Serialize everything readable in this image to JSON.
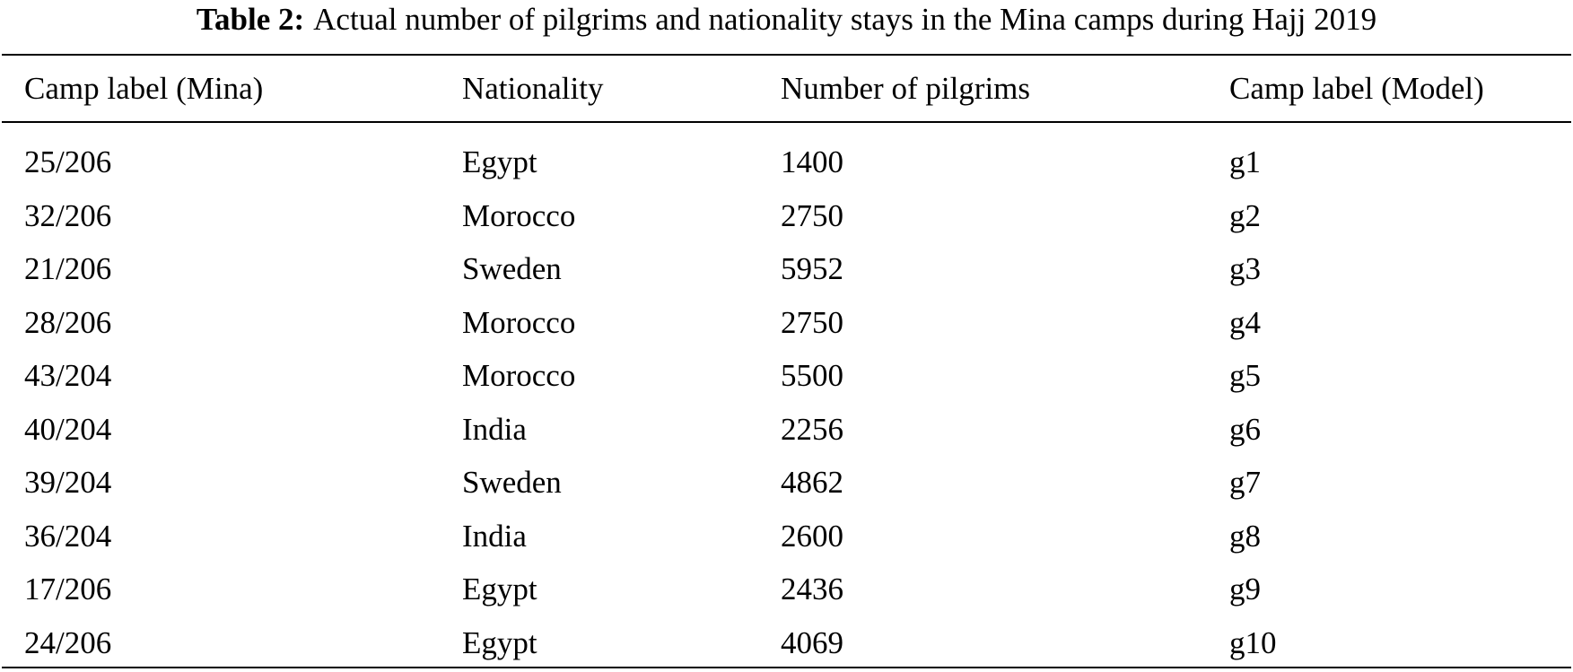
{
  "caption": {
    "label": "Table 2:",
    "text": "Actual number of pilgrims and nationality stays in the Mina camps during Hajj 2019"
  },
  "table": {
    "headers": [
      "Camp label (Mina)",
      "Nationality",
      "Number of pilgrims",
      "Camp label (Model)"
    ],
    "rows": [
      [
        "25/206",
        "Egypt",
        "1400",
        "g1"
      ],
      [
        "32/206",
        "Morocco",
        "2750",
        "g2"
      ],
      [
        "21/206",
        "Sweden",
        "5952",
        "g3"
      ],
      [
        "28/206",
        "Morocco",
        "2750",
        "g4"
      ],
      [
        "43/204",
        "Morocco",
        "5500",
        "g5"
      ],
      [
        "40/204",
        "India",
        "2256",
        "g6"
      ],
      [
        "39/204",
        "Sweden",
        "4862",
        "g7"
      ],
      [
        "36/204",
        "India",
        "2600",
        "g8"
      ],
      [
        "17/206",
        "Egypt",
        "2436",
        "g9"
      ],
      [
        "24/206",
        "Egypt",
        "4069",
        "g10"
      ]
    ]
  }
}
